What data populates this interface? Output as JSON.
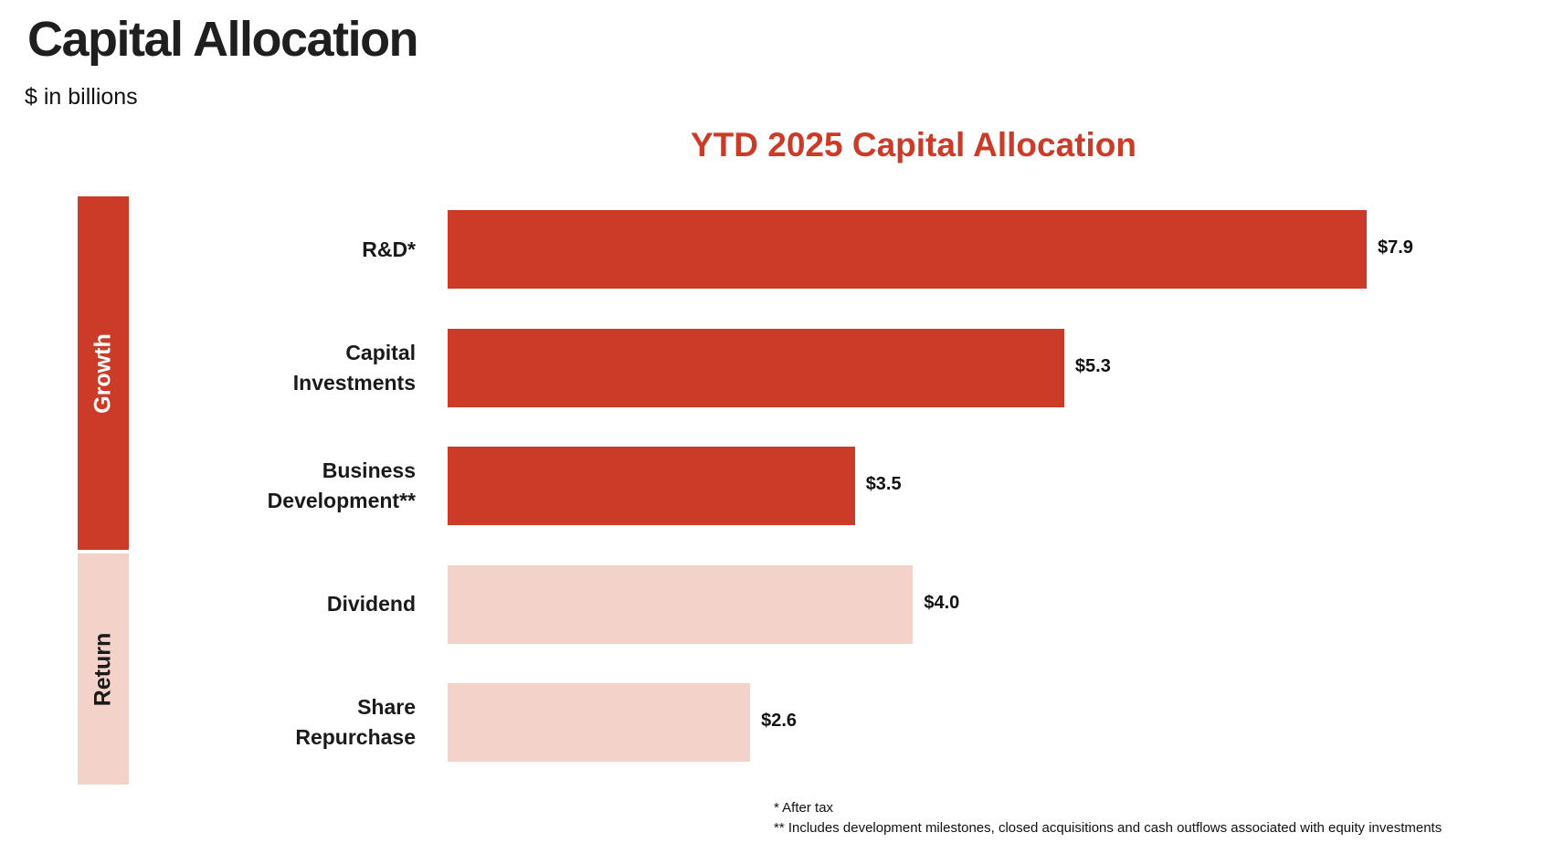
{
  "page": {
    "title": "Capital Allocation",
    "subtitle": "$ in billions"
  },
  "colors": {
    "growth": "#cc3b28",
    "return": "#f3d2ca",
    "title_red": "#cc3b28"
  },
  "chart_data": {
    "type": "bar",
    "orientation": "horizontal",
    "title": "YTD 2025 Capital Allocation",
    "categories": [
      "R&D*",
      "Capital Investments",
      "Business Development**",
      "Dividend",
      "Share Repurchase"
    ],
    "category_lines": [
      [
        "R&D*"
      ],
      [
        "Capital",
        "Investments"
      ],
      [
        "Business",
        "Development**"
      ],
      [
        "Dividend"
      ],
      [
        "Share",
        "Repurchase"
      ]
    ],
    "values": [
      7.9,
      5.3,
      3.5,
      4.0,
      2.6
    ],
    "value_labels": [
      "$7.9",
      "$5.3",
      "$3.5",
      "$4.0",
      "$2.6"
    ],
    "groups": [
      {
        "name": "Growth",
        "categories": [
          "R&D*",
          "Capital Investments",
          "Business Development**"
        ]
      },
      {
        "name": "Return",
        "categories": [
          "Dividend",
          "Share Repurchase"
        ]
      }
    ],
    "xlim": [
      0,
      7.9
    ],
    "grid": false,
    "legend": "none"
  },
  "footnotes": [
    "* After tax",
    "** Includes development milestones, closed acquisitions and cash outflows associated with equity investments"
  ]
}
